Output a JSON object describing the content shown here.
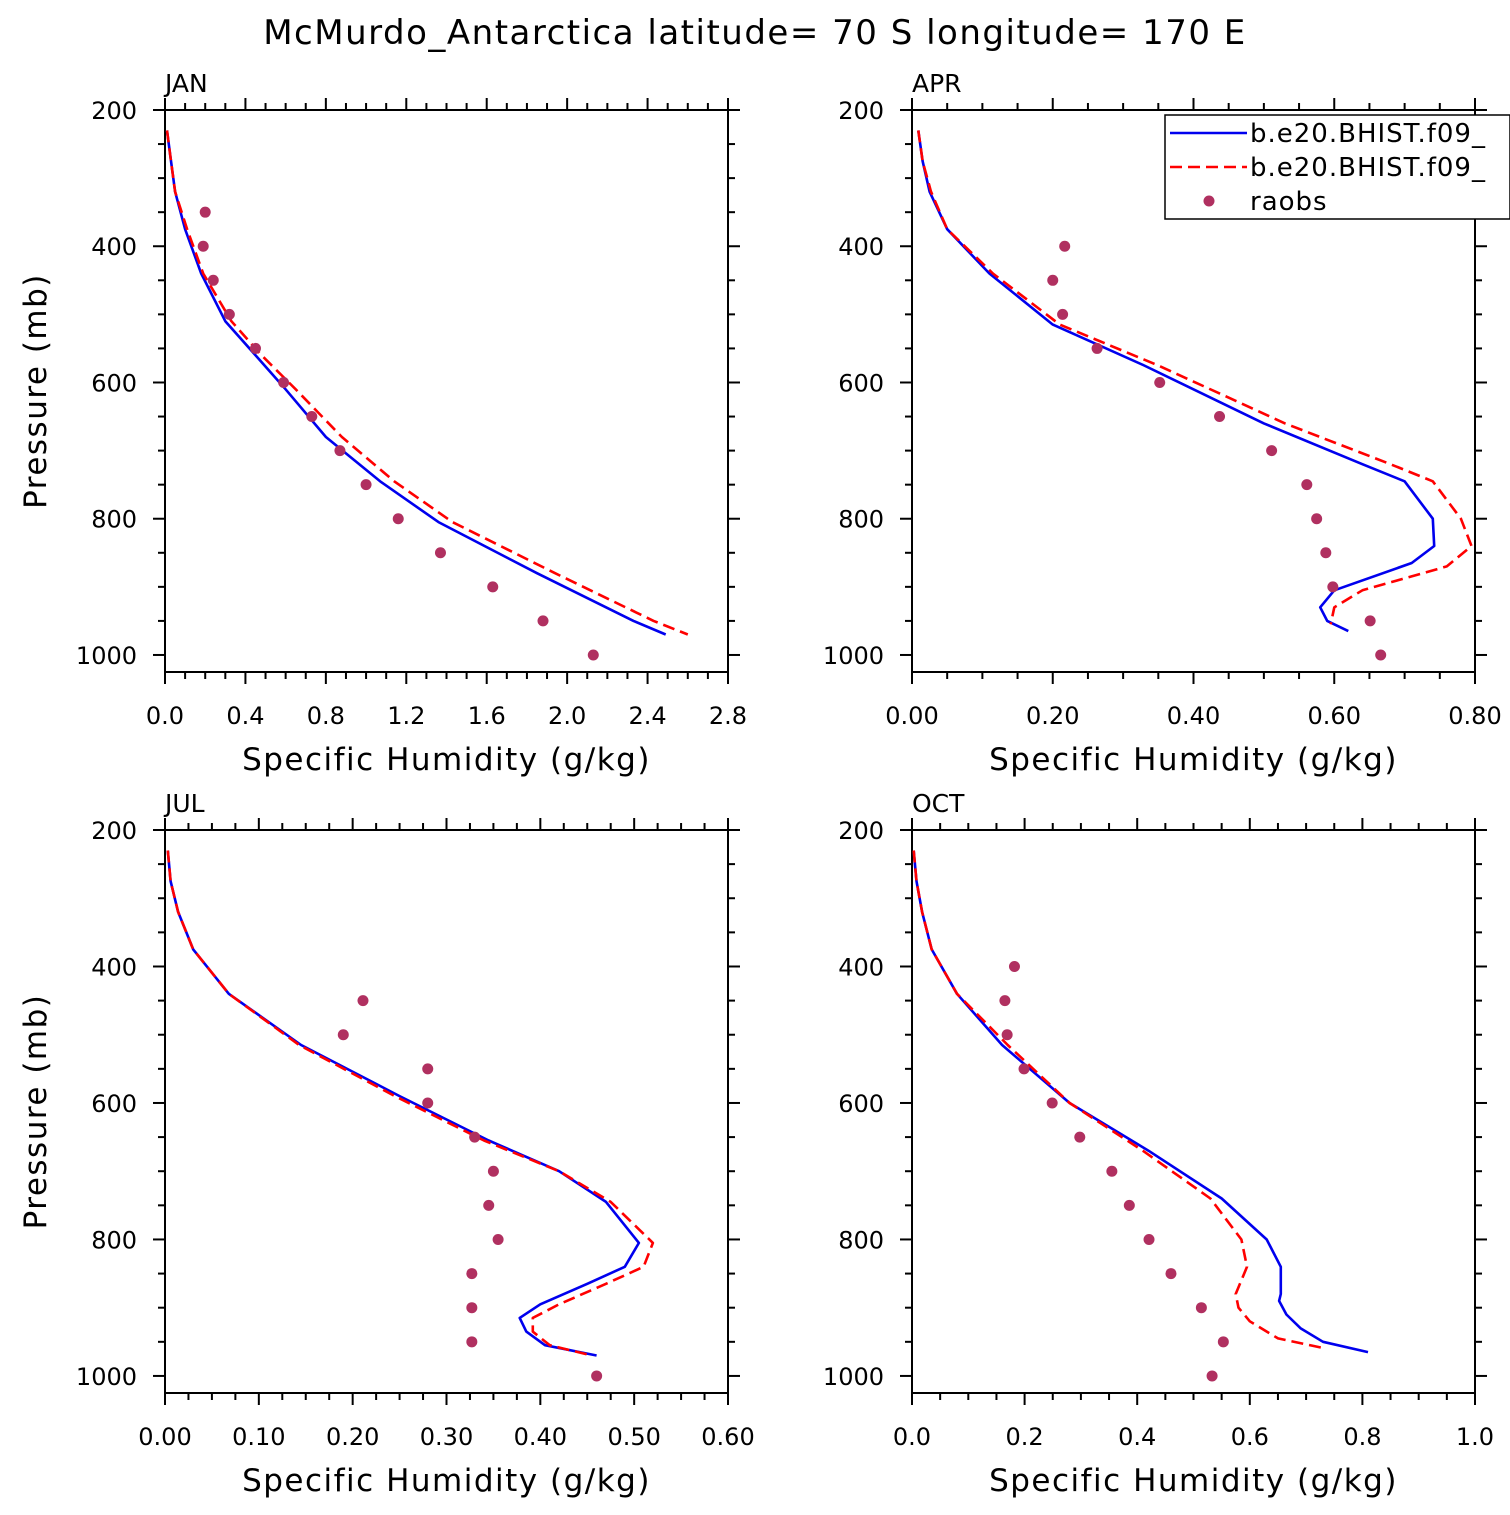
{
  "figure": {
    "title": "McMurdo_Antarctica  latitude= 70 S longitude= 170 E"
  },
  "colors": {
    "model1": "#0000ee",
    "model2": "#ff0000",
    "raobs": "#b03060",
    "axis": "#000000"
  },
  "legend": {
    "placement": "top-right of APR panel",
    "entries": [
      {
        "label": "b.e20.BHIST.f09_",
        "style": "solid",
        "color_key": "model1"
      },
      {
        "label": "b.e20.BHIST.f09_",
        "style": "dashed",
        "color_key": "model2"
      },
      {
        "label": "raobs",
        "style": "dot",
        "color_key": "raobs"
      }
    ]
  },
  "chart_data": [
    {
      "type": "line",
      "panel_label": "JAN",
      "xlabel": "Specific Humidity (g/kg)",
      "ylabel": "Pressure (mb)",
      "xlim": [
        0,
        2.8
      ],
      "xticks": [
        "0.0",
        "0.4",
        "0.8",
        "1.2",
        "1.6",
        "2.0",
        "2.4",
        "2.8"
      ],
      "xminor": 0.1,
      "ylim": [
        200,
        1025
      ],
      "yinverted": true,
      "yticks": [
        "200",
        "400",
        "600",
        "800",
        "1000"
      ],
      "yminor": 50,
      "series": [
        {
          "name": "b.e20.BHIST.f09_",
          "style": "solid",
          "color_key": "model1",
          "x": [
            0.01,
            0.03,
            0.05,
            0.1,
            0.18,
            0.3,
            0.45,
            0.6,
            0.8,
            1.07,
            1.36,
            1.85,
            2.33,
            2.49
          ],
          "y": [
            230,
            275,
            320,
            375,
            440,
            510,
            560,
            610,
            680,
            745,
            805,
            880,
            950,
            970
          ]
        },
        {
          "name": "b.e20.BHIST.f09_",
          "style": "dashed",
          "color_key": "model2",
          "x": [
            0.01,
            0.03,
            0.05,
            0.11,
            0.19,
            0.33,
            0.48,
            0.65,
            0.88,
            1.14,
            1.43,
            1.94,
            2.43,
            2.6
          ],
          "y": [
            230,
            275,
            320,
            375,
            440,
            510,
            560,
            610,
            680,
            745,
            805,
            880,
            950,
            970
          ]
        },
        {
          "name": "raobs",
          "style": "dot",
          "color_key": "raobs",
          "x": [
            0.2,
            0.19,
            0.24,
            0.32,
            0.45,
            0.59,
            0.73,
            0.87,
            1.0,
            1.16,
            1.37,
            1.63,
            1.88,
            2.13
          ],
          "y": [
            350,
            400,
            450,
            500,
            550,
            600,
            650,
            700,
            750,
            800,
            850,
            900,
            950,
            1000
          ]
        }
      ]
    },
    {
      "type": "line",
      "panel_label": "APR",
      "xlabel": "Specific Humidity (g/kg)",
      "ylabel": "",
      "xlim": [
        0,
        0.8
      ],
      "xticks": [
        "0.00",
        "0.20",
        "0.40",
        "0.60",
        "0.80"
      ],
      "xminor": 0.05,
      "ylim": [
        200,
        1025
      ],
      "yinverted": true,
      "yticks": [
        "200",
        "400",
        "600",
        "800",
        "1000"
      ],
      "yminor": 50,
      "series": [
        {
          "name": "b.e20.BHIST.f09_",
          "style": "solid",
          "color_key": "model1",
          "x": [
            0.009,
            0.015,
            0.025,
            0.05,
            0.11,
            0.2,
            0.33,
            0.5,
            0.64,
            0.7,
            0.74,
            0.742,
            0.71,
            0.6,
            0.58,
            0.59,
            0.62
          ],
          "y": [
            230,
            275,
            320,
            375,
            440,
            515,
            575,
            660,
            720,
            745,
            800,
            840,
            865,
            905,
            930,
            950,
            965
          ]
        },
        {
          "name": "b.e20.BHIST.f09_",
          "style": "dashed",
          "color_key": "model2",
          "x": [
            0.009,
            0.015,
            0.027,
            0.05,
            0.115,
            0.21,
            0.35,
            0.53,
            0.68,
            0.74,
            0.78,
            0.795,
            0.76,
            0.64,
            0.6,
            0.595
          ],
          "y": [
            230,
            275,
            320,
            375,
            440,
            515,
            575,
            660,
            720,
            745,
            800,
            840,
            870,
            905,
            930,
            955
          ]
        },
        {
          "name": "raobs",
          "style": "dot",
          "color_key": "raobs",
          "x": [
            0.217,
            0.2,
            0.214,
            0.263,
            0.352,
            0.437,
            0.511,
            0.561,
            0.575,
            0.588,
            0.598,
            0.651,
            0.666
          ],
          "y": [
            400,
            450,
            500,
            550,
            600,
            650,
            700,
            750,
            800,
            850,
            900,
            950,
            1000
          ]
        }
      ]
    },
    {
      "type": "line",
      "panel_label": "JUL",
      "xlabel": "Specific Humidity (g/kg)",
      "ylabel": "Pressure (mb)",
      "xlim": [
        0,
        0.6
      ],
      "xticks": [
        "0.00",
        "0.10",
        "0.20",
        "0.30",
        "0.40",
        "0.50",
        "0.60"
      ],
      "xminor": 0.025,
      "ylim": [
        200,
        1025
      ],
      "yinverted": true,
      "yticks": [
        "200",
        "400",
        "600",
        "800",
        "1000"
      ],
      "yminor": 50,
      "series": [
        {
          "name": "b.e20.BHIST.f09_",
          "style": "solid",
          "color_key": "model1",
          "x": [
            0.003,
            0.006,
            0.014,
            0.03,
            0.068,
            0.145,
            0.25,
            0.345,
            0.42,
            0.47,
            0.505,
            0.49,
            0.45,
            0.4,
            0.378,
            0.385,
            0.405,
            0.46
          ],
          "y": [
            230,
            275,
            320,
            375,
            440,
            515,
            590,
            655,
            700,
            745,
            805,
            840,
            865,
            895,
            915,
            935,
            955,
            970
          ]
        },
        {
          "name": "b.e20.BHIST.f09_",
          "style": "dashed",
          "color_key": "model2",
          "x": [
            0.003,
            0.006,
            0.014,
            0.03,
            0.068,
            0.143,
            0.245,
            0.34,
            0.42,
            0.475,
            0.52,
            0.51,
            0.47,
            0.42,
            0.392,
            0.392,
            0.41,
            0.455
          ],
          "y": [
            230,
            275,
            320,
            375,
            440,
            515,
            590,
            655,
            700,
            745,
            805,
            840,
            865,
            895,
            915,
            935,
            955,
            970
          ]
        },
        {
          "name": "raobs",
          "style": "dot",
          "color_key": "raobs",
          "x": [
            0.211,
            0.19,
            0.28,
            0.28,
            0.33,
            0.35,
            0.345,
            0.355,
            0.327,
            0.327,
            0.327,
            0.46
          ],
          "y": [
            450,
            500,
            550,
            600,
            650,
            700,
            750,
            800,
            850,
            900,
            950,
            1000
          ]
        }
      ]
    },
    {
      "type": "line",
      "panel_label": "OCT",
      "xlabel": "Specific Humidity (g/kg)",
      "ylabel": "",
      "xlim": [
        0,
        1.0
      ],
      "xticks": [
        "0.0",
        "0.2",
        "0.4",
        "0.6",
        "0.8",
        "1.0"
      ],
      "xminor": 0.05,
      "ylim": [
        200,
        1025
      ],
      "yinverted": true,
      "yticks": [
        "200",
        "400",
        "600",
        "800",
        "1000"
      ],
      "yminor": 50,
      "series": [
        {
          "name": "b.e20.BHIST.f09_",
          "style": "solid",
          "color_key": "model1",
          "x": [
            0.003,
            0.008,
            0.018,
            0.035,
            0.08,
            0.16,
            0.28,
            0.42,
            0.55,
            0.63,
            0.655,
            0.655,
            0.652,
            0.665,
            0.69,
            0.73,
            0.81
          ],
          "y": [
            230,
            275,
            320,
            375,
            440,
            515,
            600,
            670,
            740,
            800,
            840,
            880,
            890,
            910,
            930,
            950,
            965
          ]
        },
        {
          "name": "b.e20.BHIST.f09_",
          "style": "dashed",
          "color_key": "model2",
          "x": [
            0.003,
            0.008,
            0.018,
            0.035,
            0.08,
            0.17,
            0.28,
            0.41,
            0.53,
            0.585,
            0.595,
            0.575,
            0.58,
            0.6,
            0.65,
            0.735
          ],
          "y": [
            230,
            275,
            320,
            375,
            440,
            515,
            600,
            670,
            740,
            800,
            840,
            880,
            900,
            920,
            945,
            960
          ]
        },
        {
          "name": "raobs",
          "style": "dot",
          "color_key": "raobs",
          "x": [
            0.182,
            0.165,
            0.169,
            0.199,
            0.249,
            0.298,
            0.355,
            0.386,
            0.421,
            0.46,
            0.514,
            0.553,
            0.533
          ],
          "y": [
            400,
            450,
            500,
            550,
            600,
            650,
            700,
            750,
            800,
            850,
            900,
            950,
            1000
          ]
        }
      ]
    }
  ]
}
